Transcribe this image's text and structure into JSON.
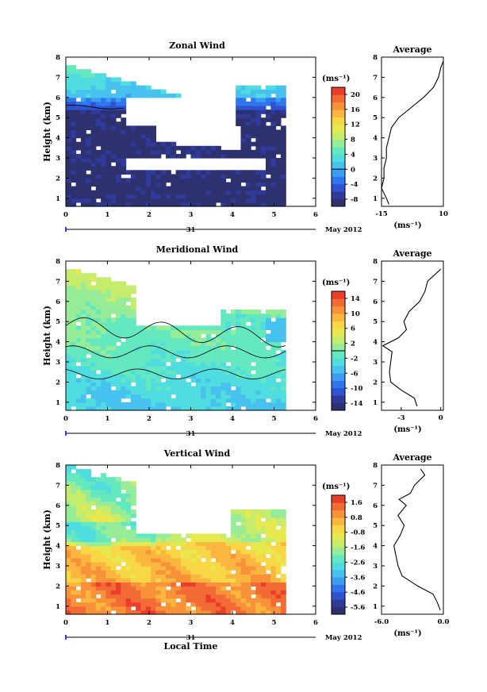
{
  "chart_data": [
    {
      "type": "heatmap",
      "title": "Zonal Wind",
      "ylabel": "Height (km)",
      "xlabel": "",
      "x_ticks": [
        "0",
        "1",
        "2",
        "3",
        "4",
        "5",
        "6"
      ],
      "y_ticks": [
        "1",
        "2",
        "3",
        "4",
        "5",
        "6",
        "7",
        "8"
      ],
      "xlim": [
        0,
        6
      ],
      "ylim": [
        0.6,
        8
      ],
      "date_number": "31",
      "date_label": "May 2012",
      "colorbar_unit": "(ms⁻¹)",
      "colorbar_ticks": [
        "20",
        "16",
        "12",
        "8",
        "4",
        "0",
        "-4",
        "-8"
      ],
      "colorbar_range": [
        -10,
        22
      ],
      "zero_line_value": 0,
      "profile": {
        "title": "Average",
        "xlabel": "(ms⁻¹)",
        "x_ticks": [
          "-15",
          "10"
        ],
        "xlim": [
          -15,
          10
        ],
        "height": [
          0.7,
          1.0,
          1.5,
          2.0,
          2.5,
          3.0,
          3.5,
          4.0,
          4.5,
          5.0,
          5.5,
          6.0,
          6.5,
          7.0,
          7.5,
          7.8
        ],
        "value": [
          -12,
          -13,
          -15,
          -14,
          -14,
          -13,
          -13,
          -12,
          -11,
          -8,
          -3,
          2,
          6,
          8,
          9,
          10
        ]
      }
    },
    {
      "type": "heatmap",
      "title": "Meridional Wind",
      "ylabel": "Height (km)",
      "xlabel": "",
      "x_ticks": [
        "0",
        "1",
        "2",
        "3",
        "4",
        "5",
        "6"
      ],
      "y_ticks": [
        "1",
        "2",
        "3",
        "4",
        "5",
        "6",
        "7",
        "8"
      ],
      "xlim": [
        0,
        6
      ],
      "ylim": [
        0.6,
        8
      ],
      "date_number": "31",
      "date_label": "May 2012",
      "colorbar_unit": "(ms⁻¹)",
      "colorbar_ticks": [
        "14",
        "10",
        "6",
        "2",
        "-2",
        "-6",
        "-10",
        "-14"
      ],
      "colorbar_range": [
        -16,
        16
      ],
      "zero_line_value": 0,
      "profile": {
        "title": "Average",
        "xlabel": "(ms⁻¹)",
        "x_ticks": [
          "-3",
          "0"
        ],
        "xlim": [
          -4.5,
          0.2
        ],
        "height": [
          0.8,
          1.2,
          1.6,
          2.0,
          2.5,
          3.0,
          3.5,
          3.8,
          4.2,
          4.6,
          5.0,
          5.5,
          6.0,
          6.5,
          7.0,
          7.6
        ],
        "value": [
          -1.8,
          -2.0,
          -3.0,
          -3.8,
          -3.9,
          -3.8,
          -3.7,
          -4.4,
          -3.2,
          -2.6,
          -2.8,
          -2.4,
          -1.6,
          -1.2,
          -1.0,
          0.0
        ]
      }
    },
    {
      "type": "heatmap",
      "title": "Vertical Wind",
      "ylabel": "Height (km)",
      "xlabel": "Local Time",
      "x_ticks": [
        "0",
        "1",
        "2",
        "3",
        "4",
        "5",
        "6"
      ],
      "y_ticks": [
        "1",
        "2",
        "3",
        "4",
        "5",
        "6",
        "7",
        "8"
      ],
      "xlim": [
        0,
        6
      ],
      "ylim": [
        0.6,
        8
      ],
      "date_number": "31",
      "date_label": "May 2012",
      "colorbar_unit": "(ms⁻¹)",
      "colorbar_ticks": [
        "1.6",
        "0.8",
        "-0.8",
        "-1.6",
        "-2.6",
        "-3.6",
        "-4.6",
        "-5.6"
      ],
      "colorbar_range": [
        -6.0,
        2.0
      ],
      "zero_line_value": null,
      "profile": {
        "title": "Average",
        "xlabel": "(ms⁻¹)",
        "x_ticks": [
          "-6.0",
          "0.0"
        ],
        "xlim": [
          -6.0,
          0.0
        ],
        "height": [
          0.8,
          1.2,
          1.6,
          2.0,
          2.5,
          3.0,
          3.5,
          4.0,
          4.5,
          5.0,
          5.5,
          6.0,
          6.3,
          6.6,
          7.0,
          7.5,
          7.8
        ],
        "value": [
          -0.3,
          -0.6,
          -1.0,
          -2.5,
          -4.0,
          -4.4,
          -4.6,
          -4.8,
          -4.2,
          -3.8,
          -4.4,
          -3.6,
          -4.3,
          -3.2,
          -2.8,
          -1.8,
          -2.2
        ]
      }
    }
  ]
}
